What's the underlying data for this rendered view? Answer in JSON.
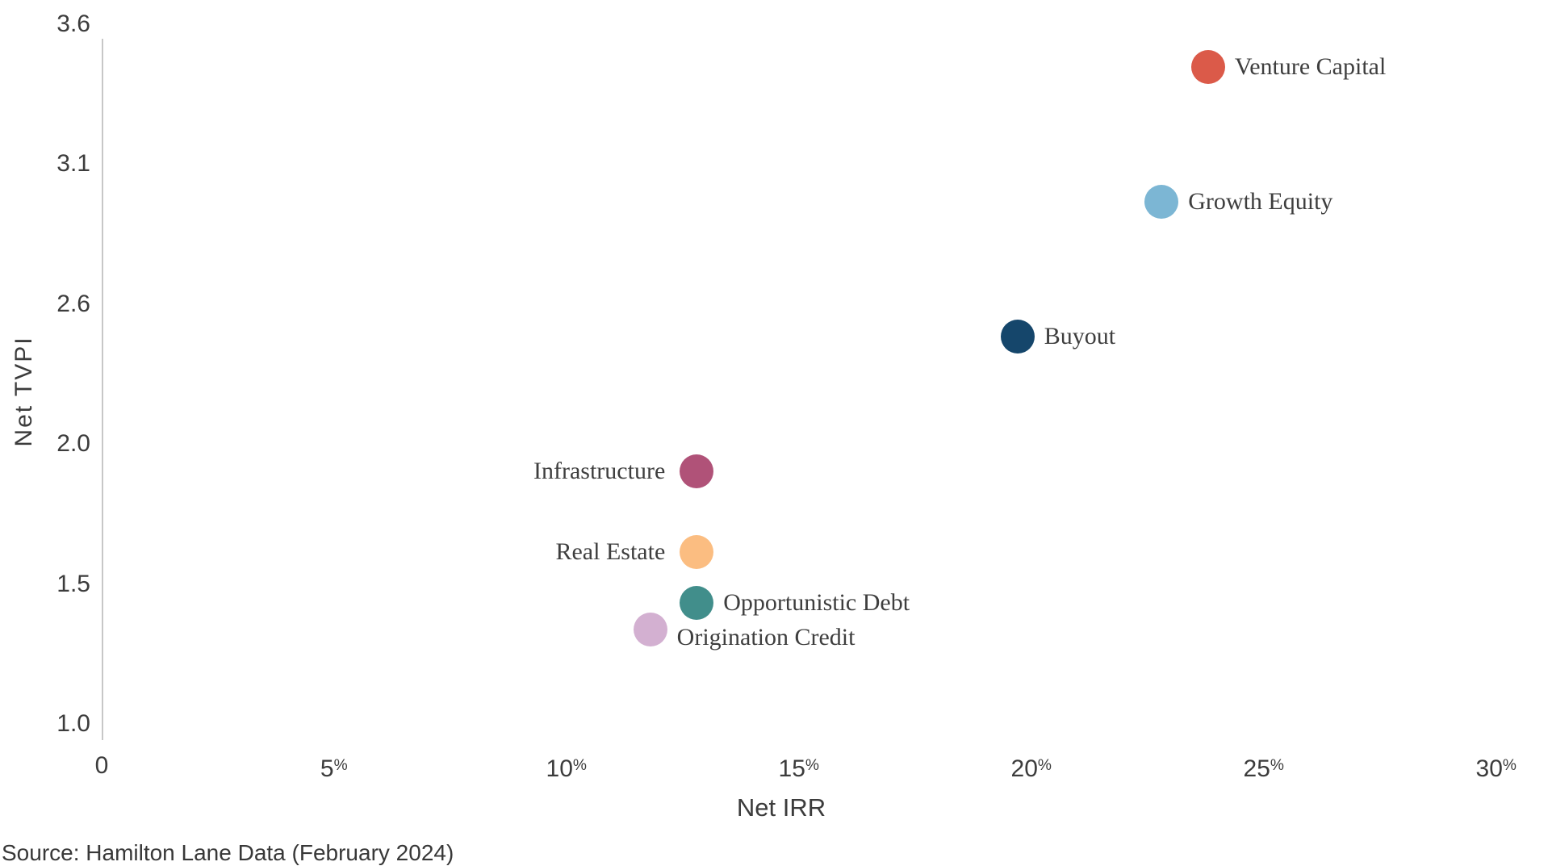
{
  "chart_data": {
    "type": "scatter",
    "title": "",
    "xlabel": "Net IRR",
    "ylabel": "Net TVPI",
    "x_range_pct": [
      0,
      30
    ],
    "y_range": [
      1.0,
      3.6
    ],
    "grid": false,
    "legend_position": "none",
    "x_ticks": [
      {
        "label": "0",
        "value": 0
      },
      {
        "label": "5%",
        "value": 5
      },
      {
        "label": "10%",
        "value": 10
      },
      {
        "label": "15%",
        "value": 15
      },
      {
        "label": "20%",
        "value": 20
      },
      {
        "label": "25%",
        "value": 25
      },
      {
        "label": "30%",
        "value": 30
      }
    ],
    "y_ticks": [
      {
        "label": "3.6",
        "value": 3.6
      },
      {
        "label": "3.1",
        "value": 3.1
      },
      {
        "label": "2.6",
        "value": 2.6
      },
      {
        "label": "2.0",
        "value": 2.0
      },
      {
        "label": "1.5",
        "value": 1.5
      },
      {
        "label": "1.0",
        "value": 1.0
      }
    ],
    "points": [
      {
        "name": "Venture Capital",
        "irr_pct": 23.8,
        "tvpi": 3.44,
        "color": "#DB5A49",
        "label_side": "right"
      },
      {
        "name": "Growth Equity",
        "irr_pct": 22.8,
        "tvpi": 2.94,
        "color": "#7CB6D4",
        "label_side": "right"
      },
      {
        "name": "Buyout",
        "irr_pct": 19.7,
        "tvpi": 2.44,
        "color": "#15466B",
        "label_side": "right"
      },
      {
        "name": "Infrastructure",
        "irr_pct": 12.8,
        "tvpi": 1.94,
        "color": "#B05278",
        "label_side": "left"
      },
      {
        "name": "Real Estate",
        "irr_pct": 12.8,
        "tvpi": 1.64,
        "color": "#FBBD81",
        "label_side": "left"
      },
      {
        "name": "Opportunistic Debt",
        "irr_pct": 12.8,
        "tvpi": 1.45,
        "color": "#418E8B",
        "label_side": "right"
      },
      {
        "name": "Origination Credit",
        "irr_pct": 11.8,
        "tvpi": 1.35,
        "color": "#D3B0D1",
        "label_side": "below-right"
      }
    ]
  },
  "footer": {
    "source": "Source: Hamilton Lane Data (February 2024)"
  }
}
